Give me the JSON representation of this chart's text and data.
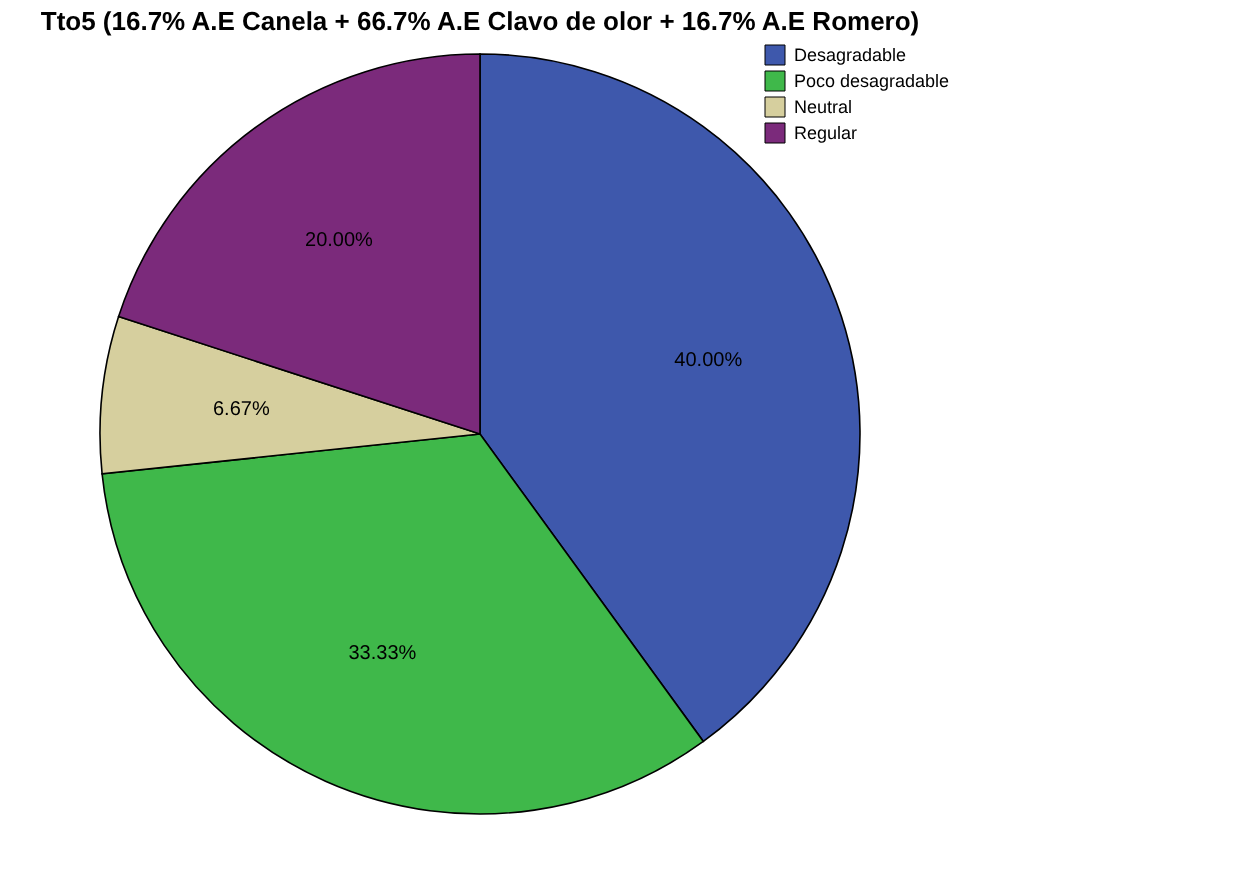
{
  "chart_data": {
    "type": "pie",
    "title": "Tto5 (16.7% A.E Canela + 66.7% A.E Clavo de olor + 16.7% A.E Romero)",
    "categories": [
      "Desagradable",
      "Poco desagradable",
      "Neutral",
      "Regular"
    ],
    "values": [
      40.0,
      33.33,
      6.67,
      20.0
    ],
    "colors": [
      "#3e58ac",
      "#3fb84a",
      "#d6cf9e",
      "#7b2a7b"
    ],
    "value_labels": [
      "40.00%",
      "33.33%",
      "6.67%",
      "20.00%"
    ],
    "legend": "top right"
  }
}
